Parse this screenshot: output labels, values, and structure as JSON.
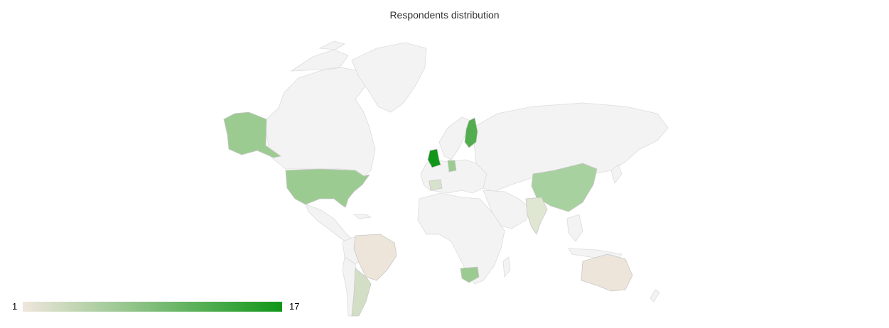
{
  "title": "Respondents distribution",
  "legend": {
    "min": "1",
    "max": "17",
    "color_min": "#efe6dc",
    "color_max": "#109618"
  },
  "colors": {
    "no_data": "#f3f3f3",
    "border": "#dcdcdc"
  },
  "countries": [
    {
      "name": "United Kingdom",
      "value": 17
    },
    {
      "name": "Finland",
      "value": 12
    },
    {
      "name": "United States",
      "value": 8
    },
    {
      "name": "Alaska (United States)",
      "value": 8
    },
    {
      "name": "China",
      "value": 7
    },
    {
      "name": "South Africa",
      "value": 8
    },
    {
      "name": "Germany",
      "value": 6
    },
    {
      "name": "India",
      "value": 4
    },
    {
      "name": "Argentina",
      "value": 3
    },
    {
      "name": "Spain",
      "value": 3
    },
    {
      "name": "Brazil",
      "value": 1
    },
    {
      "name": "Australia",
      "value": 1
    }
  ]
}
